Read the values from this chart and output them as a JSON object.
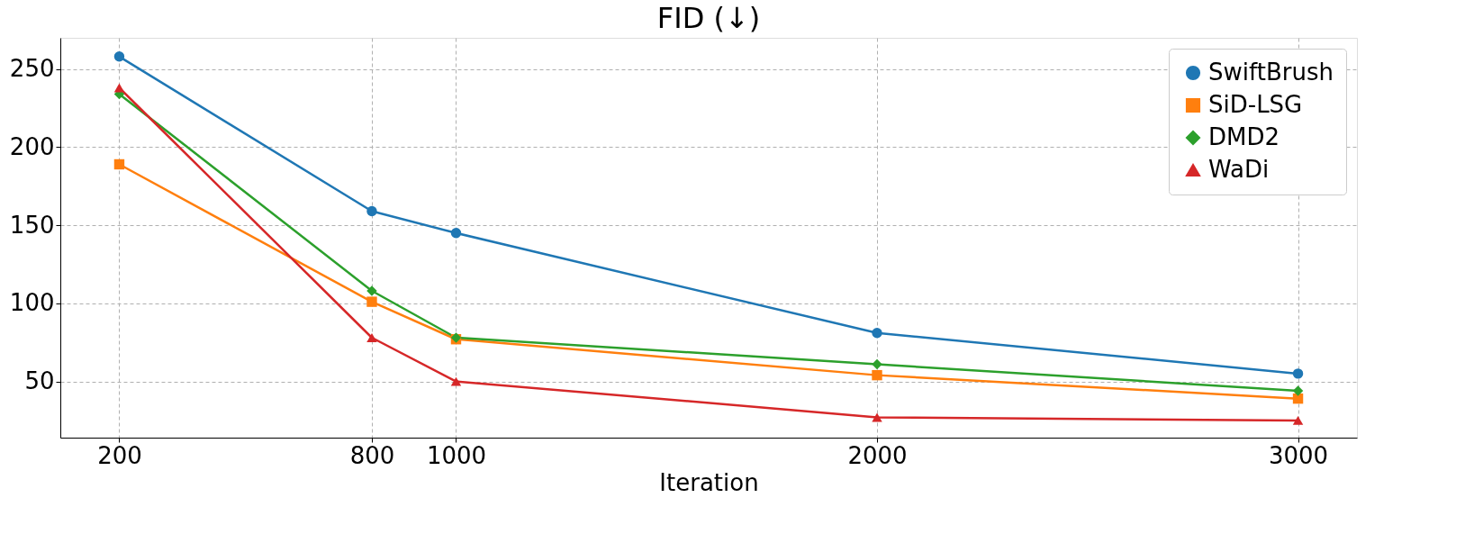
{
  "chart_data": {
    "type": "line",
    "title": "FID (↓)",
    "xlabel": "Iteration",
    "x": [
      200,
      800,
      1000,
      2000,
      3000
    ],
    "series": [
      {
        "name": "SwiftBrush",
        "color": "#1f77b4",
        "marker": "circle",
        "values": [
          258,
          159,
          145,
          81,
          55
        ]
      },
      {
        "name": "SiD-LSG",
        "color": "#ff7f0e",
        "marker": "square",
        "values": [
          189,
          101,
          77,
          54,
          39
        ]
      },
      {
        "name": "DMD2",
        "color": "#2ca02c",
        "marker": "diamond",
        "values": [
          234,
          108,
          78,
          61,
          44
        ]
      },
      {
        "name": "WaDi",
        "color": "#d62728",
        "marker": "triangle",
        "values": [
          238,
          78,
          50,
          27,
          25
        ]
      }
    ],
    "xlim": [
      60,
      3140
    ],
    "xticks": [
      200,
      800,
      1000,
      2000,
      3000
    ],
    "ylim": [
      14,
      270
    ],
    "yticks": [
      50,
      100,
      150,
      200,
      250
    ],
    "grid": true,
    "legend": "top right",
    "line_style": "solid"
  }
}
